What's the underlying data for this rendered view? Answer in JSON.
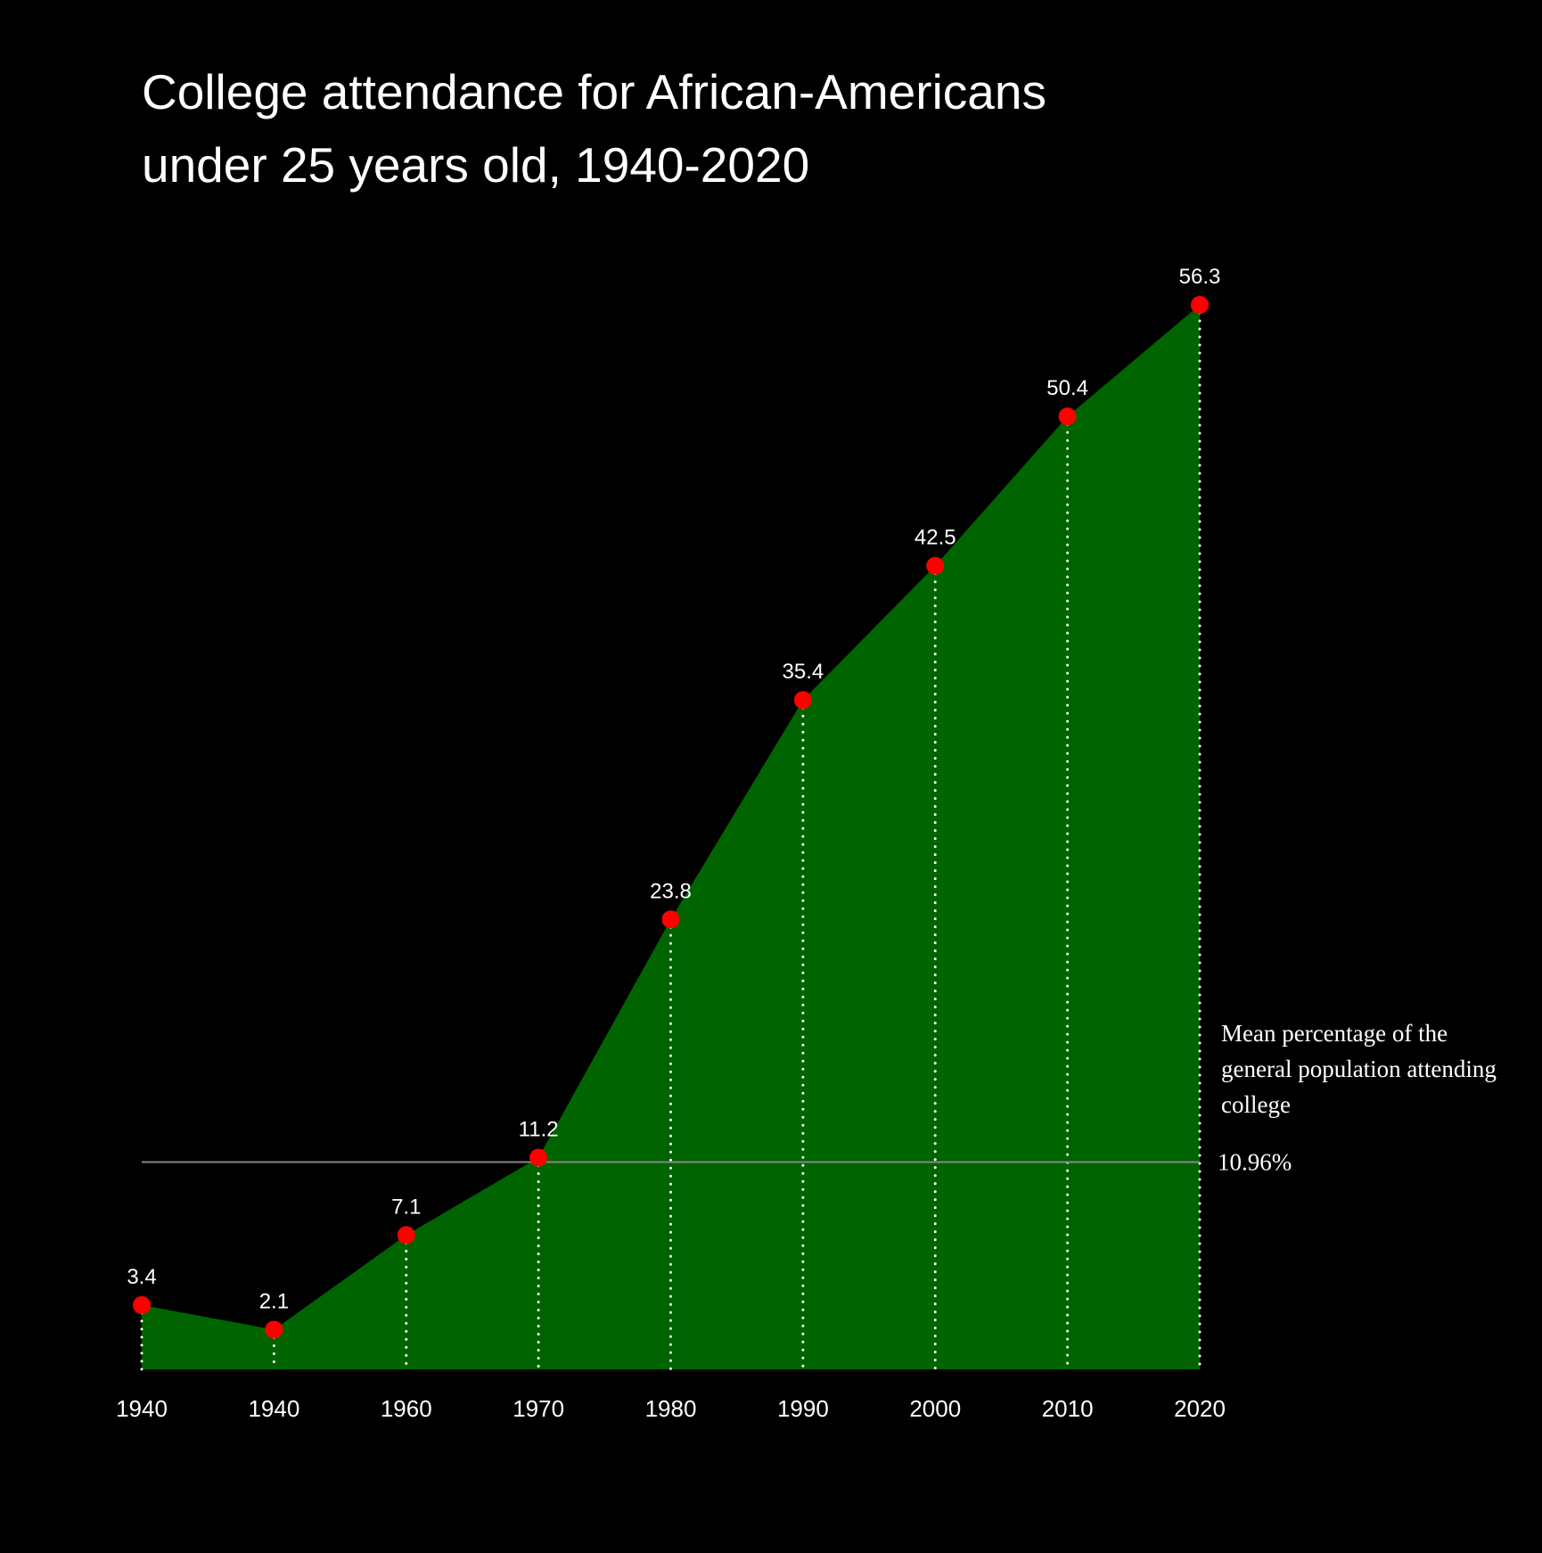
{
  "chart_data": {
    "type": "area",
    "title_lines": [
      "College attendance for African-Americans",
      "under 25 years old, 1940-2020"
    ],
    "xlabel": "",
    "ylabel": "",
    "categories": [
      "1940",
      "1940",
      "1960",
      "1970",
      "1980",
      "1990",
      "2000",
      "2010",
      "2020"
    ],
    "values": [
      3.4,
      2.1,
      7.1,
      11.2,
      23.8,
      35.4,
      42.5,
      50.4,
      56.3
    ],
    "data_labels": [
      "3.4",
      "2.1",
      "7.1",
      "11.2",
      "23.8",
      "35.4",
      "42.5",
      "50.4",
      "56.3"
    ],
    "ylim": [
      0,
      56.3
    ],
    "grid": false,
    "reference_line": {
      "value": 10.96,
      "label": "10.96%",
      "annotation_lines": [
        "Mean percentage of the",
        "general population attending",
        "college"
      ]
    },
    "colors": {
      "background": "#000000",
      "area_fill": "#006400",
      "marker": "#ff0000",
      "text": "#ffffff",
      "drop_lines": "#ffffff",
      "reference_line": "#888888"
    }
  }
}
